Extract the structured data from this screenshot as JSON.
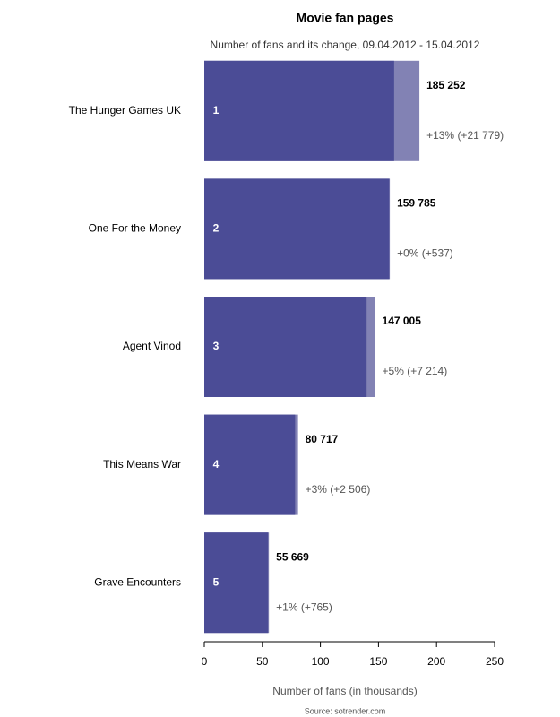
{
  "chart_data": {
    "type": "bar",
    "orientation": "horizontal",
    "title": "Movie fan pages",
    "subtitle": "Number of fans and its change, 09.04.2012 - 15.04.2012",
    "x_label": "Number of fans (in thousands)",
    "source": "Source: sotrender.com",
    "categories": [
      "The Hunger Games UK",
      "One For the Money",
      "Agent Vinod",
      "This Means War",
      "Grave Encounters"
    ],
    "ranks": [
      1,
      2,
      3,
      4,
      5
    ],
    "values": [
      185.252,
      159.785,
      147.005,
      80.717,
      55.669
    ],
    "value_labels": [
      "185 252",
      "159 785",
      "147 005",
      "80 717",
      "55 669"
    ],
    "changes": [
      21.779,
      0.537,
      7.214,
      2.506,
      0.765
    ],
    "change_labels": [
      "+13% (+21 779)",
      "+0% (+537)",
      "+5% (+7 214)",
      "+3% (+2 506)",
      "+1% (+765)"
    ],
    "color": "#4b4c96",
    "change_color": "#8282b4",
    "xlim": [
      0,
      250
    ],
    "xticks": [
      0,
      50,
      100,
      150,
      200,
      250
    ]
  }
}
